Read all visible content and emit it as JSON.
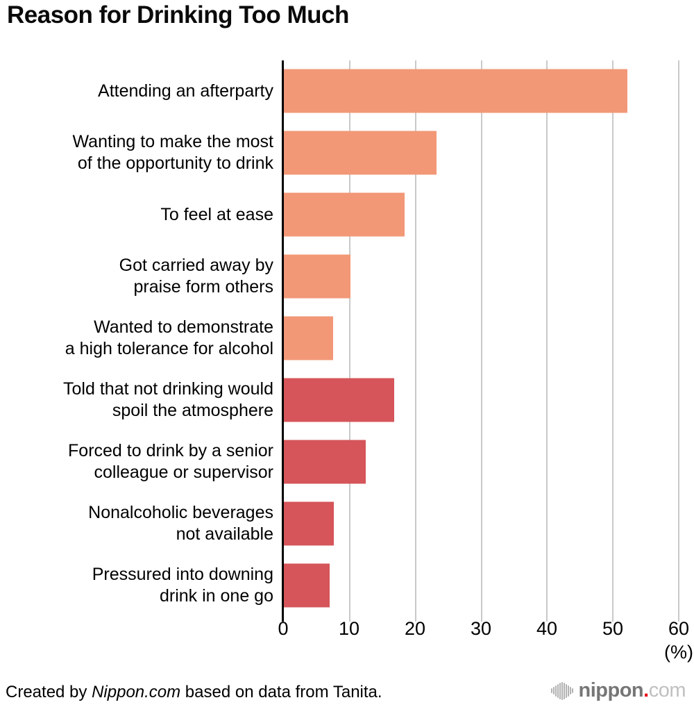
{
  "title": "Reason for Drinking Too Much",
  "chart_data": {
    "type": "bar",
    "orientation": "horizontal",
    "title": "Reason for Drinking Too Much",
    "categories": [
      "Attending an afterparty",
      "Wanting to make the most\nof the opportunity to drink",
      "To feel at ease",
      "Got carried away by\npraise form others",
      "Wanted to demonstrate\na high tolerance for alcohol",
      "Told that not drinking would\nspoil the atmosphere",
      "Forced to drink by a senior\ncolleague or supervisor",
      "Nonalcoholic beverages\nnot available",
      "Pressured into downing\ndrink in one go"
    ],
    "values": [
      52.2,
      23.2,
      18.4,
      10.1,
      7.5,
      16.8,
      12.4,
      7.6,
      7.0
    ],
    "bar_colors": [
      "#f29877",
      "#f29877",
      "#f29877",
      "#f29877",
      "#f29877",
      "#d5555a",
      "#d5555a",
      "#d5555a",
      "#d5555a"
    ],
    "xlim": [
      0,
      60
    ],
    "x_ticks": [
      "0",
      "10",
      "20",
      "30",
      "40",
      "50",
      "60"
    ],
    "x_tick_values": [
      0,
      10,
      20,
      30,
      40,
      50,
      60
    ],
    "unit_label": "(%)",
    "xlabel": "(%)",
    "ylabel": "",
    "grid": true,
    "legend": "none",
    "colors": {
      "salmon": "#f29877",
      "dark_red": "#d5555a",
      "gridline": "#c9c9c9",
      "axis": "#000000"
    }
  },
  "footer": {
    "credit_prefix": "Created by ",
    "credit_source": "Nippon.com",
    "credit_suffix": " based on data from Tanita.",
    "logo": {
      "icon": "soundwave-bars-icon",
      "text_main": "nippon",
      "text_dot": ".",
      "text_tld": "com",
      "color_main": "#767676",
      "color_dot": "#e60012",
      "color_tld": "#c0c0c0",
      "color_icon": "#b2b2b2"
    }
  }
}
